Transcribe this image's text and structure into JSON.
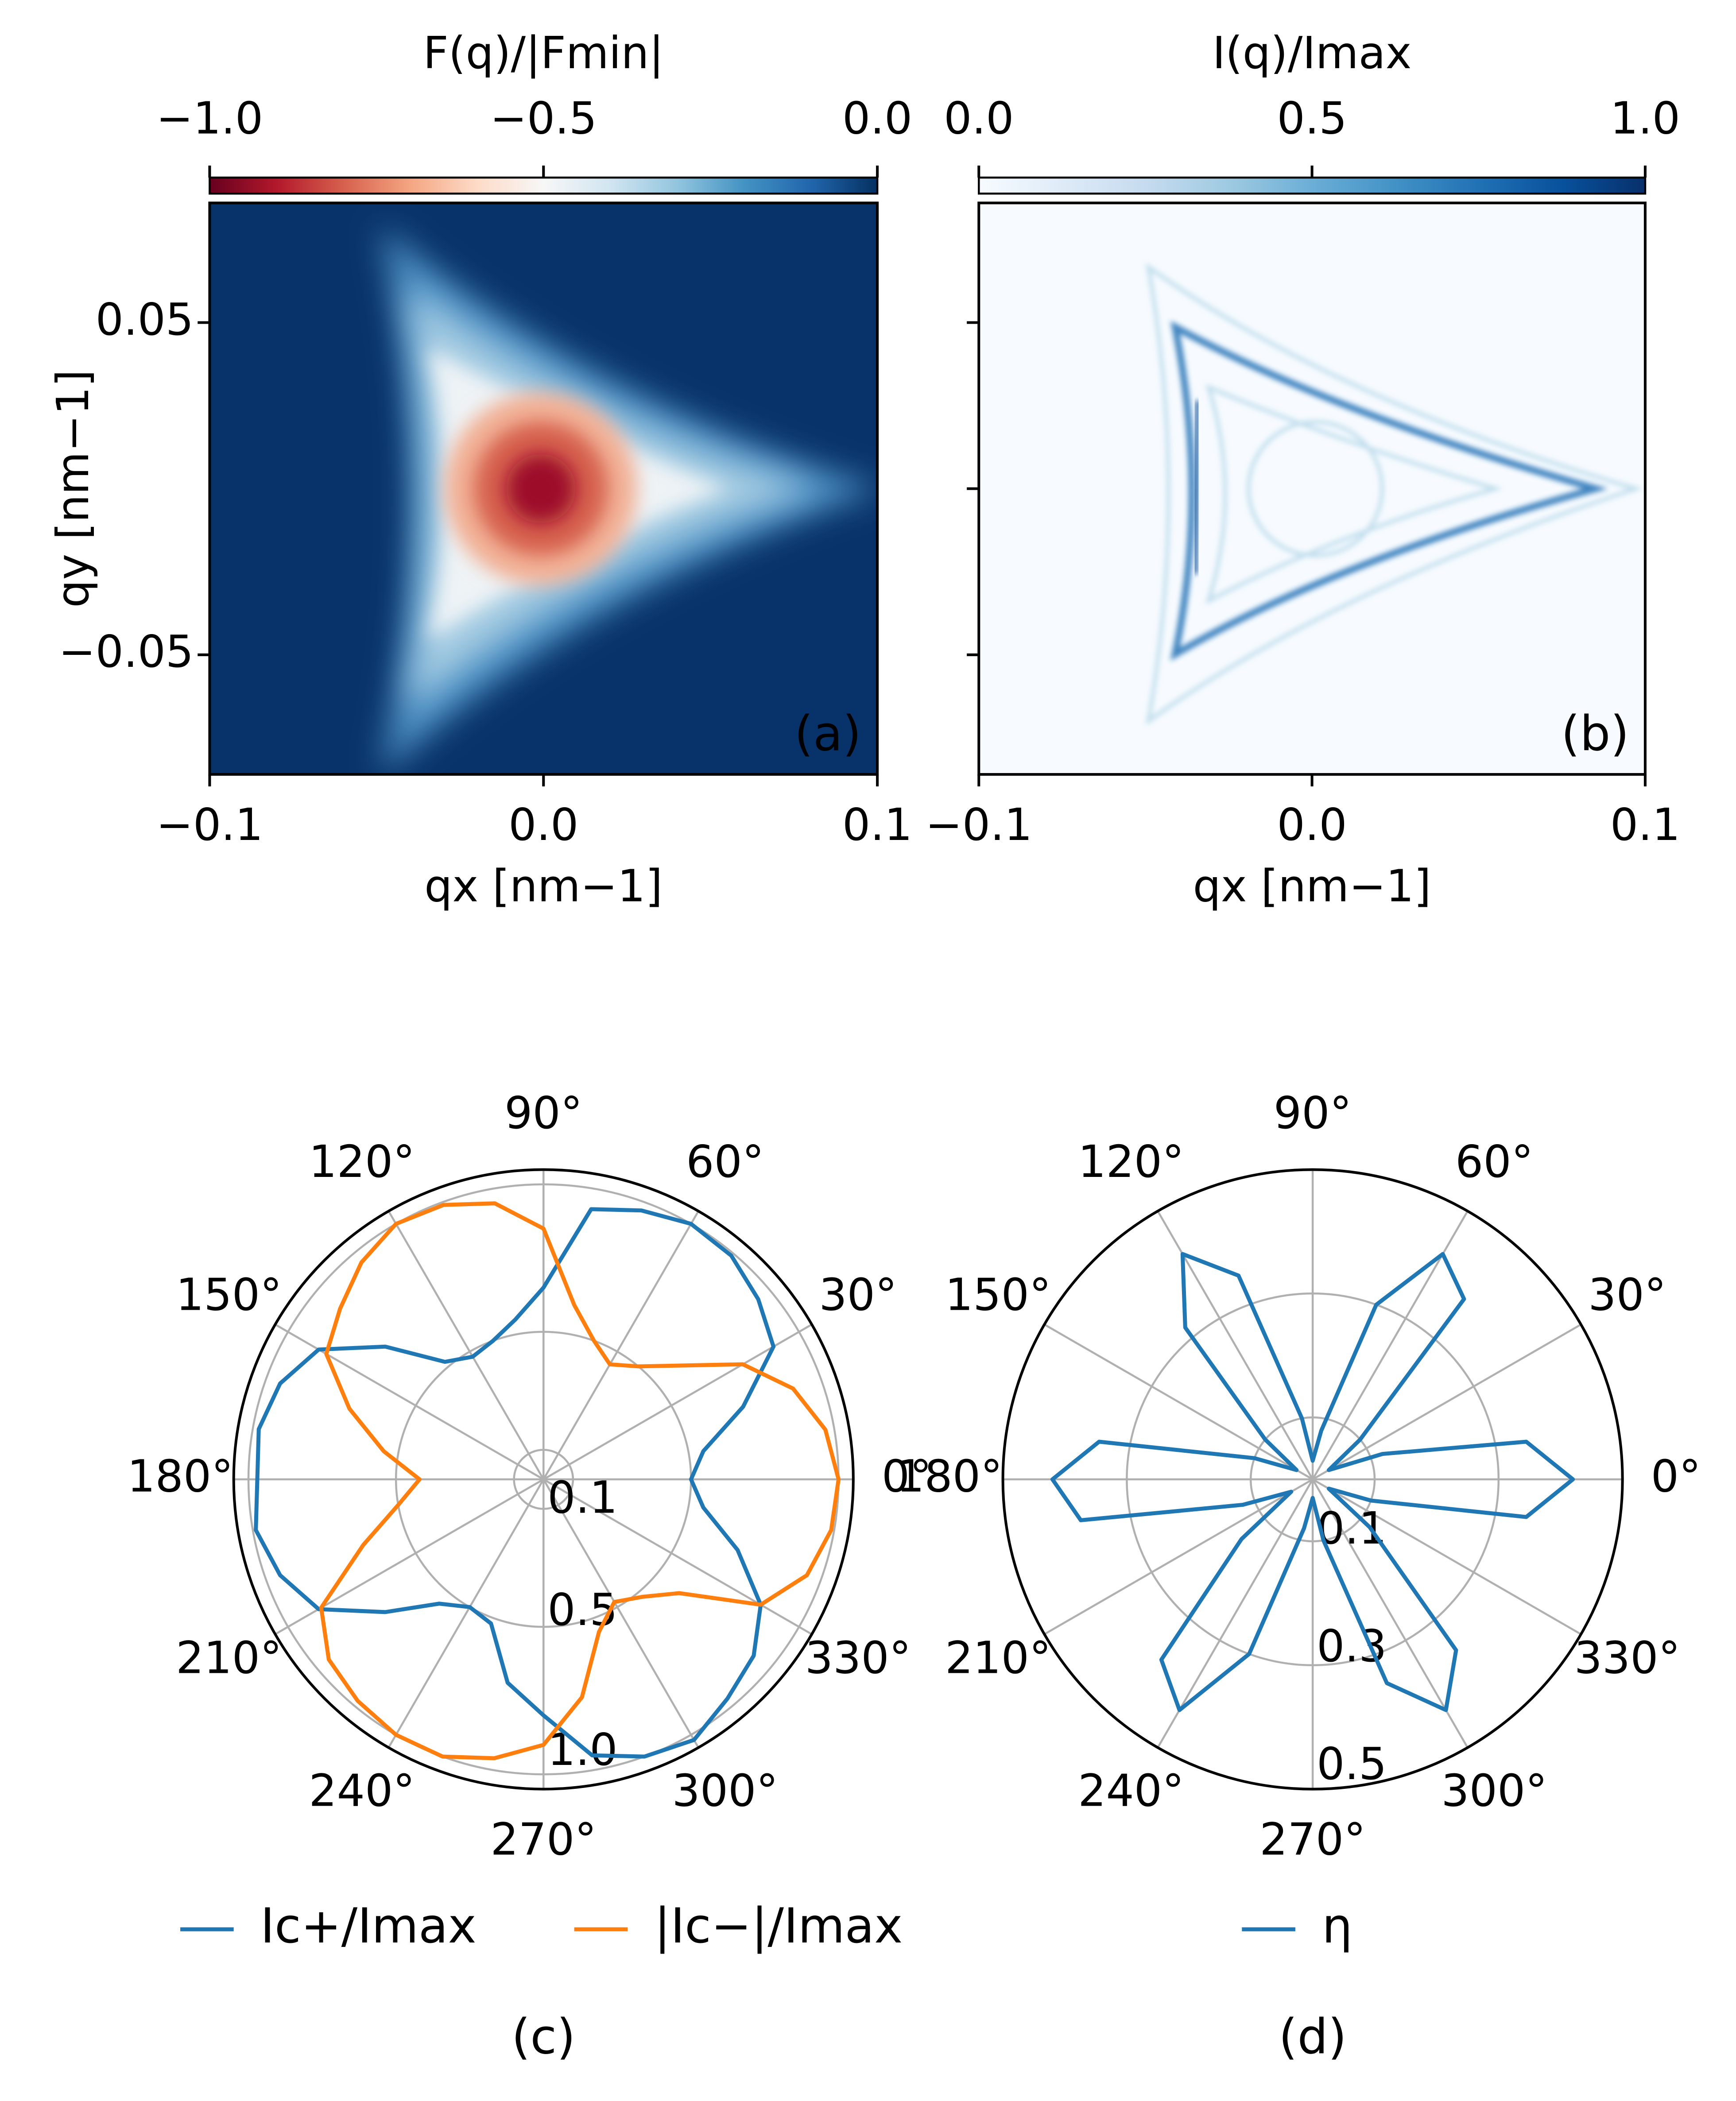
{
  "chart_data": [
    {
      "type": "heatmap",
      "colorbar_label": "F(q)/|Fmin|",
      "xlabel": "qx [nm−1]",
      "ylabel": "qy [nm−1]",
      "panel_label": "(a)",
      "panel_label_color": "#ffffff",
      "xlim": [
        -0.1,
        0.1
      ],
      "ylim": [
        -0.086,
        0.086
      ],
      "xticks": [
        {
          "value": -0.1,
          "label": "−0.1"
        },
        {
          "value": 0,
          "label": "0.0"
        },
        0.1
      ],
      "yticks": [
        {
          "value": -0.05,
          "label": "−0.05"
        },
        0.05
      ],
      "show_ytick_labels": true,
      "clim": [
        -1,
        0
      ],
      "cticks": [
        {
          "value": -1,
          "label": "−1.0"
        },
        {
          "value": -0.5,
          "label": "−0.5"
        },
        {
          "value": 0,
          "label": "0.0"
        }
      ],
      "colormap": [
        "#67001f",
        "#b2182b",
        "#d6604d",
        "#f4a582",
        "#fddbc7",
        "#f7f7f7",
        "#d1e5f0",
        "#92c5de",
        "#4393c3",
        "#2166ac",
        "#053061"
      ]
    },
    {
      "type": "heatmap",
      "colorbar_label": "I(q)/Imax",
      "xlabel": "qx [nm−1]",
      "panel_label": "(b)",
      "panel_label_color": "#000000",
      "xlim": [
        -0.1,
        0.1
      ],
      "ylim": [
        -0.086,
        0.086
      ],
      "xticks": [
        {
          "value": -0.1,
          "label": "−0.1"
        },
        {
          "value": 0,
          "label": "0.0"
        },
        0.1
      ],
      "yticks": [
        -0.05,
        0,
        0.05
      ],
      "show_ytick_labels": false,
      "clim": [
        0,
        1
      ],
      "cticks": [
        {
          "value": 0,
          "label": "0.0"
        },
        0.5,
        {
          "value": 1,
          "label": "1.0"
        }
      ],
      "colormap": [
        "#f7fbff",
        "#deebf7",
        "#c6dbef",
        "#9ecae1",
        "#6baed6",
        "#4292c6",
        "#2171b5",
        "#08519c",
        "#08306b"
      ]
    },
    {
      "type": "polar",
      "panel_label": "(c)",
      "rlim": [
        0,
        1.05
      ],
      "rticks": [
        0.1,
        0.5,
        {
          "value": 1,
          "label": "1.0"
        }
      ],
      "thetaticks": [
        {
          "value": 0,
          "label": "0°"
        },
        {
          "value": 30,
          "label": "30°"
        },
        {
          "value": 60,
          "label": "60°"
        },
        {
          "value": 90,
          "label": "90°"
        },
        {
          "value": 120,
          "label": "120°"
        },
        {
          "value": 150,
          "label": "150°"
        },
        {
          "value": 180,
          "label": "180°"
        },
        {
          "value": 210,
          "label": "210°"
        },
        {
          "value": 240,
          "label": "240°"
        },
        {
          "value": 270,
          "label": "270°"
        },
        {
          "value": 300,
          "label": "300°"
        },
        {
          "value": 330,
          "label": "330°"
        }
      ],
      "theta": [
        0,
        10,
        20,
        30,
        40,
        50,
        60,
        70,
        80,
        90,
        100,
        110,
        120,
        130,
        140,
        150,
        160,
        170,
        180,
        190,
        200,
        210,
        220,
        230,
        240,
        250,
        260,
        270,
        280,
        290,
        300,
        310,
        320,
        330,
        340,
        350
      ],
      "series": [
        {
          "name": "Ic+/Imax",
          "color": "#1f77b4",
          "values": [
            0.5,
            0.55,
            0.72,
            0.9,
            0.95,
            0.99,
            1.0,
            0.97,
            0.93,
            0.65,
            0.55,
            0.5,
            0.48,
            0.52,
            0.7,
            0.88,
            0.95,
            0.98,
            0.97,
            0.99,
            0.95,
            0.88,
            0.7,
            0.55,
            0.5,
            0.52,
            0.7,
            0.8,
            0.95,
            1.0,
            1.02,
            0.97,
            0.93,
            0.85,
            0.7,
            0.55
          ]
        },
        {
          "name": "|Ic−|/Imax",
          "color": "#ff7f0e",
          "values": [
            1.0,
            0.97,
            0.9,
            0.78,
            0.6,
            0.5,
            0.45,
            0.5,
            0.6,
            0.85,
            0.95,
            0.99,
            1.0,
            0.96,
            0.9,
            0.85,
            0.7,
            0.55,
            0.42,
            0.5,
            0.65,
            0.87,
            0.95,
            0.98,
            1.0,
            1.0,
            0.96,
            0.9,
            0.75,
            0.55,
            0.48,
            0.52,
            0.6,
            0.85,
            0.95,
            0.99
          ]
        }
      ]
    },
    {
      "type": "polar",
      "panel_label": "(d)",
      "rlim": [
        0,
        0.5
      ],
      "rticks": [
        0.1,
        0.3,
        0.5
      ],
      "thetaticks": [
        {
          "value": 0,
          "label": "0°"
        },
        {
          "value": 30,
          "label": "30°"
        },
        {
          "value": 60,
          "label": "60°"
        },
        {
          "value": 90,
          "label": "90°"
        },
        {
          "value": 120,
          "label": "120°"
        },
        {
          "value": 150,
          "label": "150°"
        },
        {
          "value": 180,
          "label": "180°"
        },
        {
          "value": 210,
          "label": "210°"
        },
        {
          "value": 240,
          "label": "240°"
        },
        {
          "value": 270,
          "label": "270°"
        },
        {
          "value": 300,
          "label": "300°"
        },
        {
          "value": 330,
          "label": "330°"
        }
      ],
      "theta": [
        0,
        10,
        20,
        30,
        40,
        50,
        60,
        70,
        80,
        90,
        100,
        110,
        120,
        130,
        140,
        150,
        160,
        170,
        180,
        190,
        200,
        210,
        220,
        230,
        240,
        250,
        260,
        270,
        280,
        290,
        300,
        310,
        320,
        330,
        340,
        350
      ],
      "series": [
        {
          "name": "η",
          "color": "#1f77b4",
          "values": [
            0.42,
            0.35,
            0.12,
            0.03,
            0.1,
            0.38,
            0.42,
            0.3,
            0.08,
            0.03,
            0.1,
            0.35,
            0.42,
            0.32,
            0.1,
            0.03,
            0.1,
            0.35,
            0.42,
            0.38,
            0.12,
            0.04,
            0.15,
            0.38,
            0.43,
            0.3,
            0.08,
            0.03,
            0.1,
            0.35,
            0.43,
            0.36,
            0.12,
            0.03,
            0.1,
            0.35
          ]
        }
      ]
    }
  ]
}
